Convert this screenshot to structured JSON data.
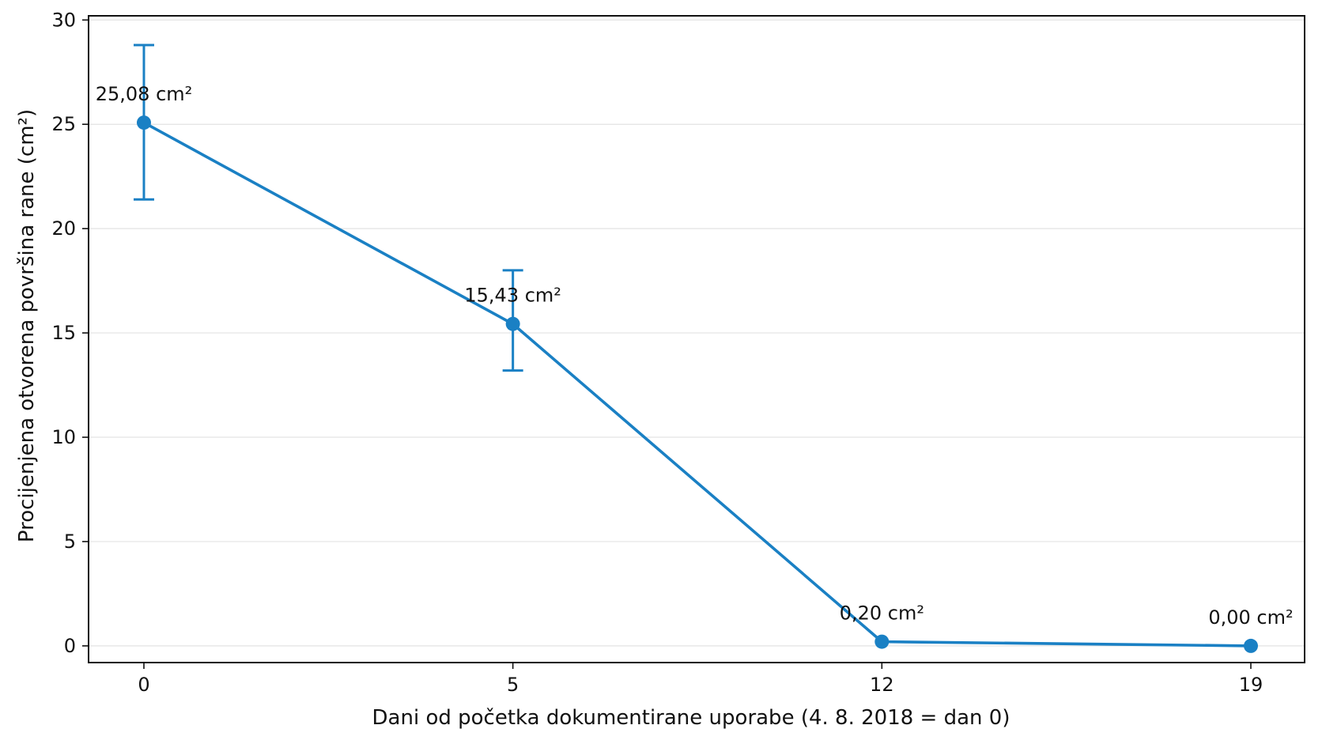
{
  "chart_data": {
    "type": "line",
    "title": "",
    "xlabel": "Dani od početka dokumentirane uporabe (4. 8. 2018 = dan 0)",
    "ylabel": "Procijenjena otvorena površina rane (cm²)",
    "x_ticks": [
      "0",
      "5",
      "12",
      "19"
    ],
    "y_ticks": [
      "0",
      "5",
      "10",
      "15",
      "20",
      "25",
      "30"
    ],
    "ylim": [
      -0.8,
      30.2
    ],
    "grid": "horizontal",
    "line_color": "#1a80c4",
    "series": [
      {
        "points": [
          {
            "day": 0,
            "value": 25.08,
            "label": "25,08 cm²",
            "err_low": 21.4,
            "err_high": 28.8
          },
          {
            "day": 5,
            "value": 15.43,
            "label": "15,43 cm²",
            "err_low": 13.2,
            "err_high": 18.0
          },
          {
            "day": 12,
            "value": 0.2,
            "label": "0,20 cm²"
          },
          {
            "day": 19,
            "value": 0.0,
            "label": "0,00 cm²"
          }
        ]
      }
    ]
  }
}
